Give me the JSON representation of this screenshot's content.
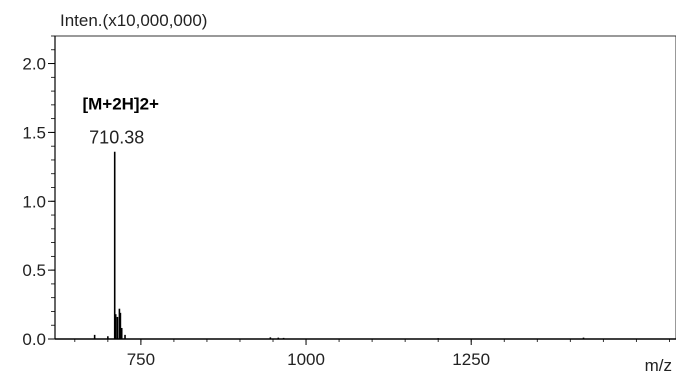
{
  "chart_data": {
    "type": "line",
    "subtype": "mass-spectrum",
    "title": "",
    "ylabel": "Inten.(x10,000,000)",
    "xlabel": "m/z",
    "xlim": [
      620,
      1560
    ],
    "ylim": [
      0,
      2.2
    ],
    "y_ticks": [
      0.0,
      0.5,
      1.0,
      1.5,
      2.0
    ],
    "y_tick_labels": [
      "0.0",
      "0.5",
      "1.0",
      "1.5",
      "2.0"
    ],
    "x_ticks": [
      750,
      1000,
      1250
    ],
    "x_tick_labels": [
      "750",
      "1000",
      "1250"
    ],
    "grid": false,
    "peaks": [
      {
        "x": 680,
        "y": 0.03
      },
      {
        "x": 700,
        "y": 0.02
      },
      {
        "x": 710.38,
        "y": 1.36
      },
      {
        "x": 711.9,
        "y": 0.18
      },
      {
        "x": 714.5,
        "y": 0.16
      },
      {
        "x": 717.5,
        "y": 0.22
      },
      {
        "x": 719.0,
        "y": 0.19
      },
      {
        "x": 721.0,
        "y": 0.08
      },
      {
        "x": 726.0,
        "y": 0.03
      },
      {
        "x": 946,
        "y": 0.012
      },
      {
        "x": 958,
        "y": 0.01
      },
      {
        "x": 966,
        "y": 0.008
      },
      {
        "x": 1200,
        "y": 0.006
      },
      {
        "x": 1420,
        "y": 0.01
      }
    ],
    "annotations": [
      {
        "text": "[M+2H]2+",
        "x": 710.38,
        "y": 1.36,
        "role": "species"
      },
      {
        "text": "710.38",
        "x": 710.38,
        "y": 1.36,
        "role": "mz"
      }
    ]
  }
}
